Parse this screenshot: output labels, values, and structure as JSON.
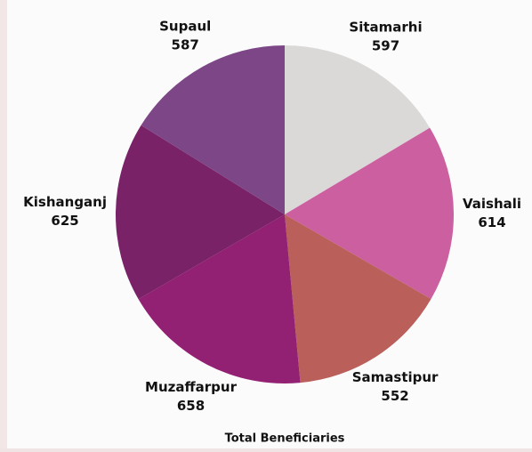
{
  "chart_data": {
    "type": "pie",
    "title": "Total Beneficiaries",
    "categories": [
      "Sitamarhi",
      "Vaishali",
      "Samastipur",
      "Muzaffarpur",
      "Kishanganj",
      "Supaul"
    ],
    "values": [
      597,
      614,
      552,
      658,
      625,
      587
    ],
    "colors": [
      "#dbd9d8",
      "#cc5fa0",
      "#bb5f5b",
      "#922073",
      "#7a2268",
      "#7d4787"
    ]
  }
}
